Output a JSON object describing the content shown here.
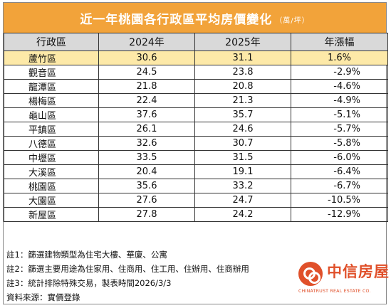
{
  "title": "近一年桃園各行政區平均房價變化",
  "unit": "（萬/坪）",
  "headers": [
    "行政區",
    "2024年",
    "2025年",
    "年漲幅"
  ],
  "rows": [
    {
      "district": "蘆竹區",
      "y2024": "30.6",
      "y2025": "31.1",
      "change": "1.6%",
      "highlight": true
    },
    {
      "district": "觀音區",
      "y2024": "24.5",
      "y2025": "23.8",
      "change": "-2.9%"
    },
    {
      "district": "龍潭區",
      "y2024": "21.8",
      "y2025": "20.8",
      "change": "-4.6%"
    },
    {
      "district": "楊梅區",
      "y2024": "22.4",
      "y2025": "21.3",
      "change": "-4.9%"
    },
    {
      "district": "龜山區",
      "y2024": "37.6",
      "y2025": "35.7",
      "change": "-5.1%"
    },
    {
      "district": "平鎮區",
      "y2024": "26.1",
      "y2025": "24.6",
      "change": "-5.7%"
    },
    {
      "district": "八德區",
      "y2024": "32.6",
      "y2025": "30.7",
      "change": "-5.8%"
    },
    {
      "district": "中壢區",
      "y2024": "33.5",
      "y2025": "31.5",
      "change": "-6.0%"
    },
    {
      "district": "大溪區",
      "y2024": "20.4",
      "y2025": "19.1",
      "change": "-6.4%"
    },
    {
      "district": "桃園區",
      "y2024": "35.6",
      "y2025": "33.2",
      "change": "-6.7%"
    },
    {
      "district": "大園區",
      "y2024": "27.6",
      "y2025": "24.7",
      "change": "-10.5%"
    },
    {
      "district": "新屋區",
      "y2024": "27.8",
      "y2025": "24.2",
      "change": "-12.9%"
    }
  ],
  "notes": [
    "註1：篩選建物類型為住宅大樓、華廈、公寓",
    "註2：篩選主要用途為住家用、住商用、住工用、住辦用、住商辦用",
    "註3：統計排除特殊交易，製表時間2026/3/3",
    "資料來源：實價登錄"
  ],
  "logo": {
    "zh": "中信房屋",
    "en": "CHINATRUST REAL ESTATE CO."
  },
  "colors": {
    "title_bg": "#f2a33a",
    "header_bg": "#d9d9d9",
    "highlight": "#fde9a8",
    "brand": "#e0502a"
  }
}
